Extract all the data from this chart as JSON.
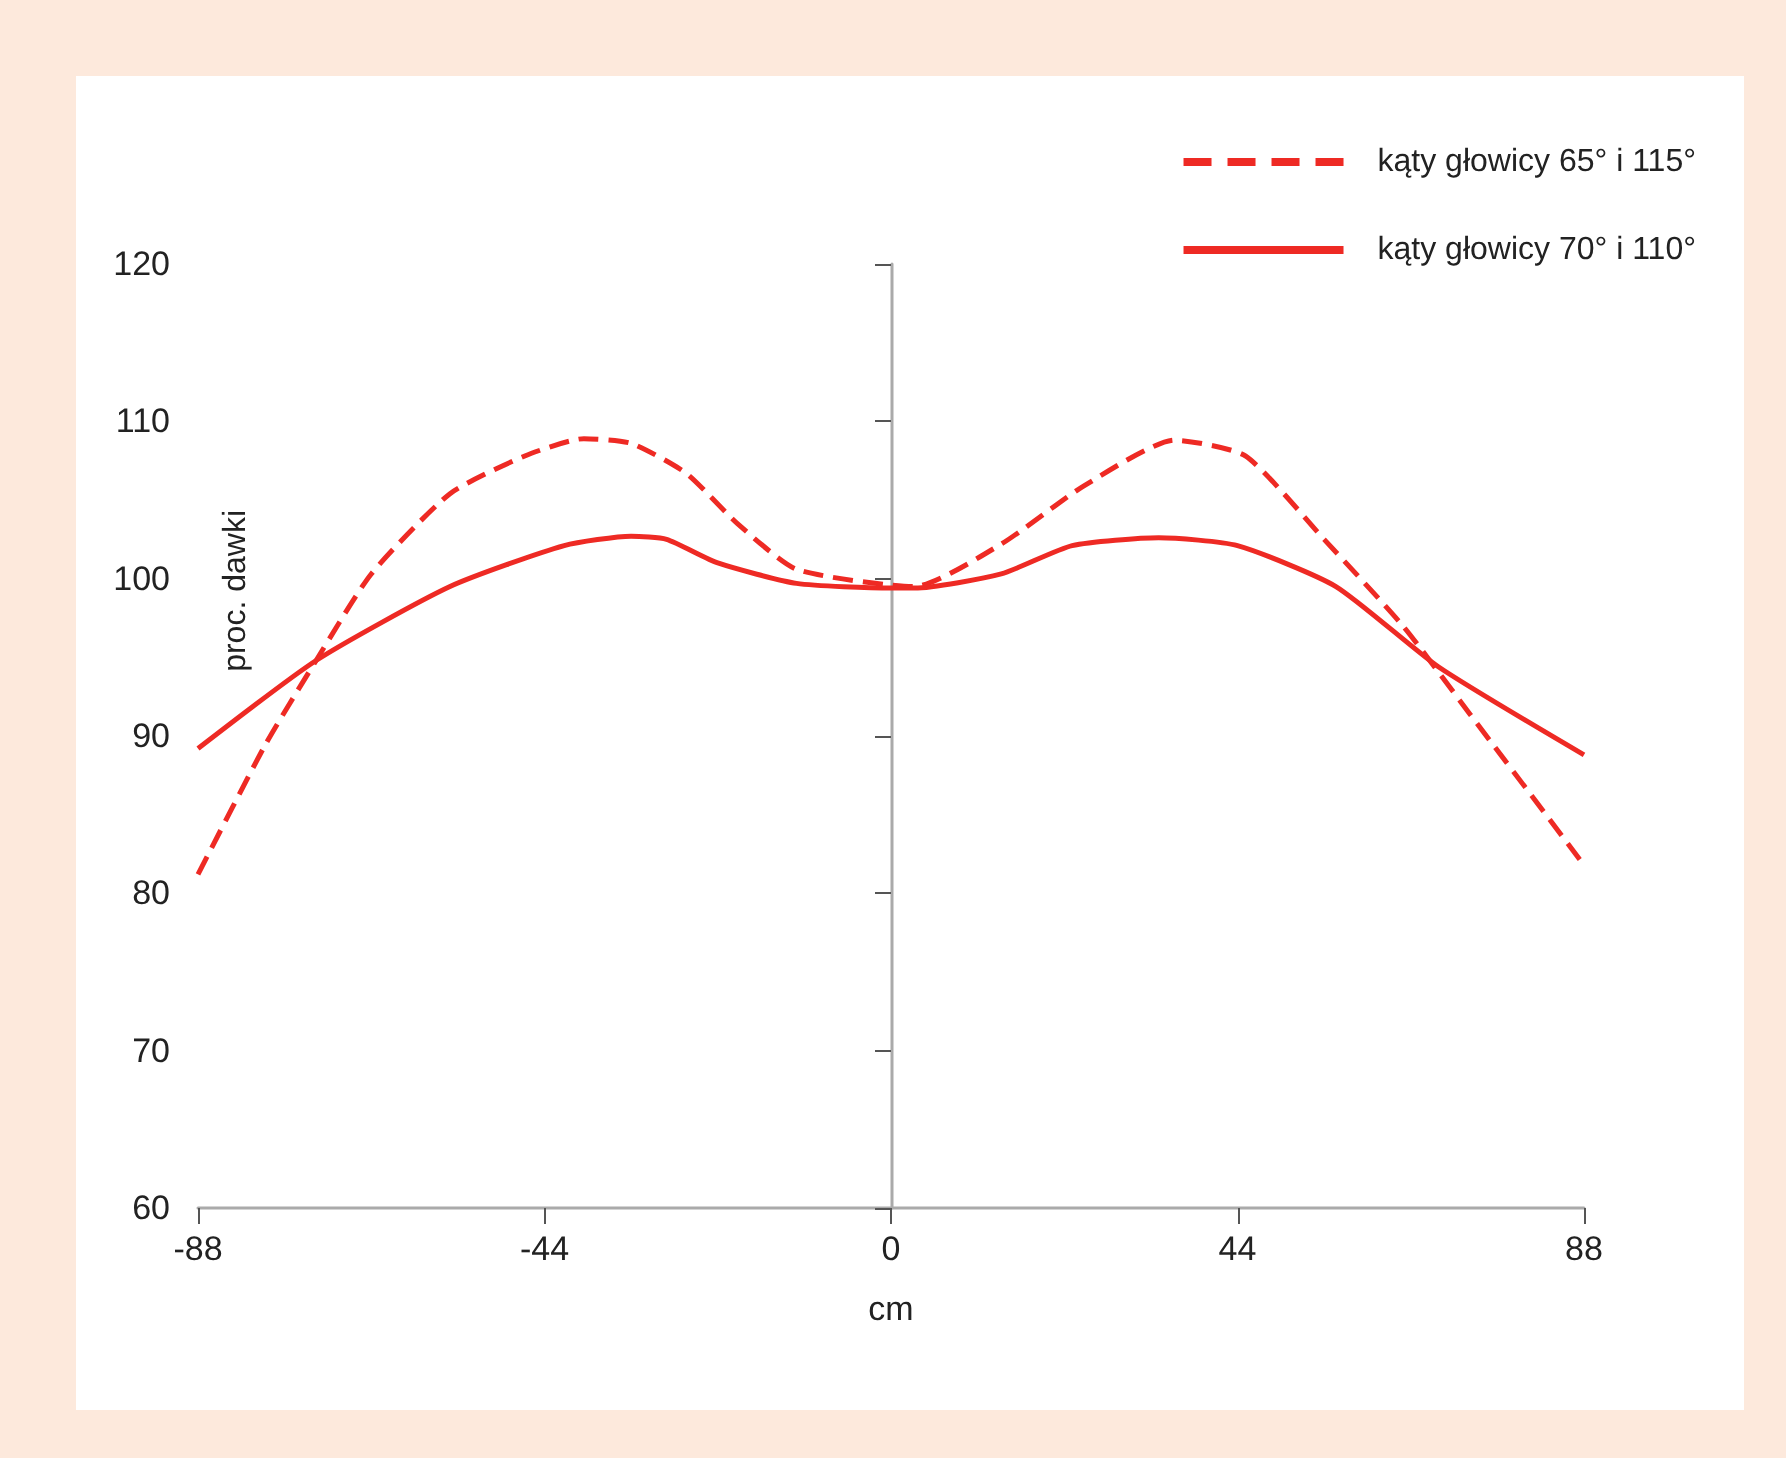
{
  "chart_data": {
    "type": "line",
    "xlabel": "cm",
    "ylabel": "proc. dawki",
    "xlim": [
      -88,
      88
    ],
    "ylim": [
      60,
      120
    ],
    "xticks": [
      -88,
      -44,
      0,
      44,
      88
    ],
    "yticks": [
      60,
      70,
      80,
      90,
      100,
      110,
      120
    ],
    "legend": "top right",
    "marker": "none",
    "series": [
      {
        "name": "kąty głowicy 65° i 115°",
        "color": "#ee2a24",
        "line_style": "dashed",
        "x": [
          -88,
          -79.5,
          -73,
          -66,
          -56,
          -46.5,
          -39,
          -33,
          -26,
          -19.5,
          -12,
          3,
          14,
          24.5,
          36,
          45,
          55,
          65,
          73.5,
          88
        ],
        "values": [
          81.2,
          89.4,
          94.8,
          100.3,
          105.4,
          107.8,
          108.9,
          108.6,
          106.7,
          103.5,
          100.6,
          99.5,
          102.2,
          105.9,
          108.8,
          107.8,
          102.5,
          97,
          91.4,
          81.8
        ]
      },
      {
        "name": "kąty głowicy 70° i 110°",
        "color": "#ee2a24",
        "line_style": "solid",
        "x": [
          -88,
          -73,
          -56,
          -41.5,
          -33,
          -28.5,
          -22,
          -12,
          0,
          3,
          14,
          23,
          34,
          44,
          56.5,
          69.5,
          88
        ],
        "values": [
          89.2,
          94.8,
          99.5,
          102.1,
          102.7,
          102.5,
          101,
          99.7,
          99.4,
          99.4,
          100.3,
          102.1,
          102.6,
          102.1,
          99.5,
          94.4,
          88.8
        ]
      }
    ]
  }
}
